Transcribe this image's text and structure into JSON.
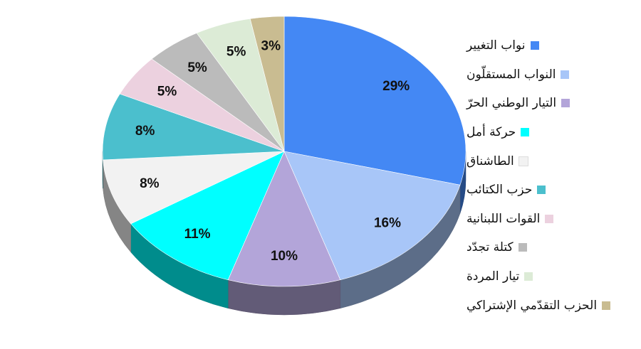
{
  "chart_data": {
    "type": "pie",
    "title": "",
    "categories": [
      "نواب التغيير",
      "النواب المستقلّون",
      "التيار الوطني الحرّ",
      "حركة أمل",
      "الطاشناق",
      "حزب الكتائب",
      "القوات اللبنانية",
      "كتلة تجدّد",
      "تيار المردة",
      "الحزب التقدّمي الإشتراكي"
    ],
    "values": [
      29,
      16,
      10,
      11,
      8,
      8,
      5,
      5,
      5,
      3
    ],
    "value_labels": [
      "29%",
      "16%",
      "10%",
      "11%",
      "8%",
      "8%",
      "5%",
      "5%",
      "5%",
      "3%"
    ],
    "colors": [
      "#4488f4",
      "#a8c6f8",
      "#b3a5d9",
      "#00ffff",
      "#f2f2f2",
      "#4bbfcd",
      "#ecd1df",
      "#bbbbbb",
      "#dcebd6",
      "#c9bc91"
    ],
    "legend_position": "right",
    "style": "3d"
  }
}
